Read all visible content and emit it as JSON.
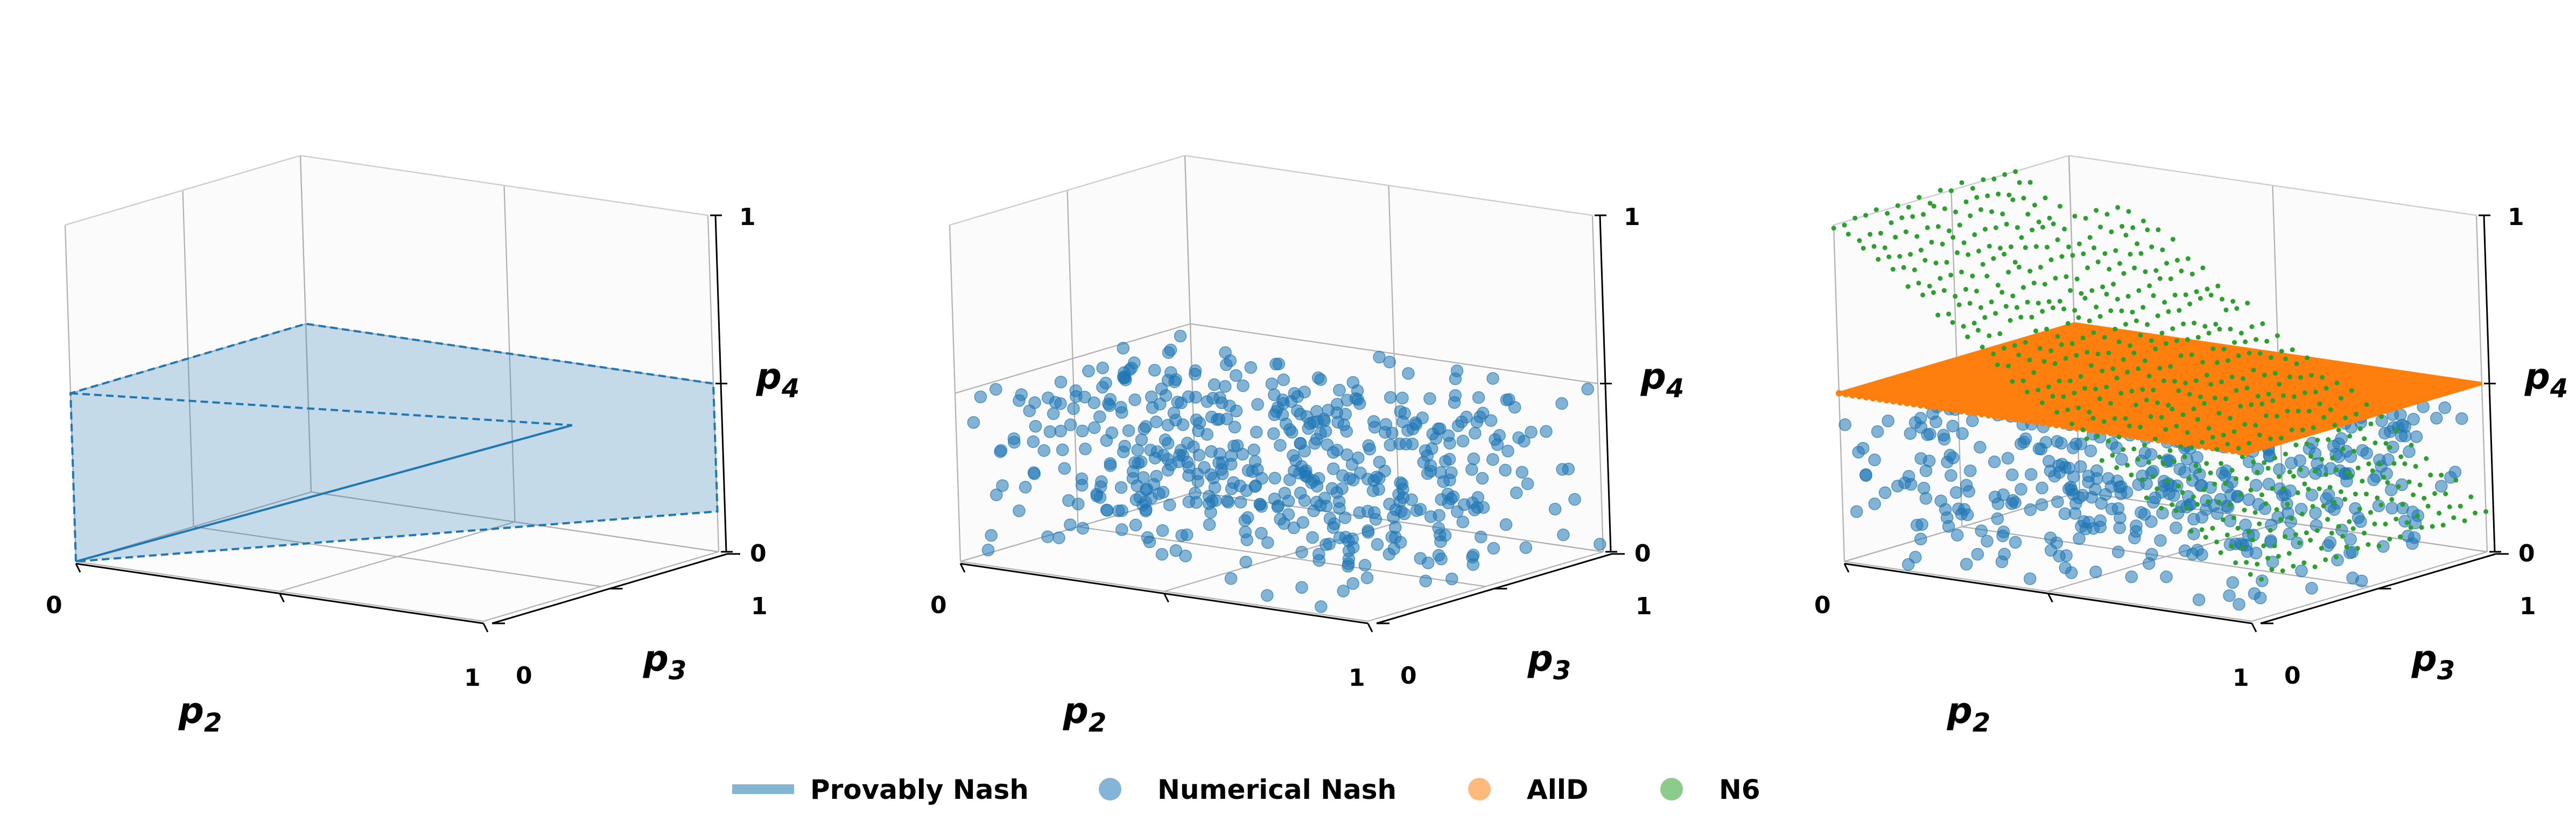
{
  "colors": {
    "provably_nash": "#1f77b4",
    "numerical_nash": "#1f77b4",
    "alld": "#ff7f0e",
    "n6": "#2ca02c",
    "grid": "#b0b0b0",
    "pane": "#e8e8e8"
  },
  "chart_data": [
    {
      "type": "3d-surface",
      "xlabel": "p",
      "xlabel_sub": "2",
      "ylabel": "p",
      "ylabel_sub": "3",
      "zlabel": "p",
      "zlabel_sub": "4",
      "xlim": [
        0,
        1
      ],
      "ylim": [
        0,
        1
      ],
      "zlim": [
        0,
        1
      ],
      "xticks": [
        "0",
        "1"
      ],
      "yticks": [
        "0",
        "1"
      ],
      "zticks": [
        "0",
        "1"
      ],
      "grid": true,
      "series": [
        {
          "name": "Provably Nash",
          "polygon": [
            [
              0,
              0,
              0
            ],
            [
              0,
              0,
              0.5
            ],
            [
              0,
              1,
              0.5
            ],
            [
              1,
              1,
              0.5
            ],
            [
              1,
              1,
              0.12
            ]
          ],
          "inner_line": [
            [
              0,
              0,
              0
            ],
            [
              1,
              0.4,
              0.5
            ]
          ]
        }
      ]
    },
    {
      "type": "3d-scatter",
      "xlabel": "p",
      "xlabel_sub": "2",
      "ylabel": "p",
      "ylabel_sub": "3",
      "zlabel": "p",
      "zlabel_sub": "4",
      "xlim": [
        0,
        1
      ],
      "ylim": [
        0,
        1
      ],
      "zlim": [
        0,
        1
      ],
      "xticks": [
        "0",
        "1"
      ],
      "yticks": [
        "0",
        "1"
      ],
      "zticks": [
        "0",
        "1"
      ],
      "grid": true,
      "series": [
        {
          "name": "Numerical Nash",
          "n_points": 520,
          "p2_range": [
            0,
            1
          ],
          "p3_range": [
            0,
            1
          ],
          "p4_range": [
            0,
            0.5
          ]
        }
      ]
    },
    {
      "type": "3d-scatter",
      "xlabel": "p",
      "xlabel_sub": "2",
      "ylabel": "p",
      "ylabel_sub": "3",
      "zlabel": "p",
      "zlabel_sub": "4",
      "xlim": [
        0,
        1
      ],
      "ylim": [
        0,
        1
      ],
      "zlim": [
        0,
        1
      ],
      "xticks": [
        "0",
        "1"
      ],
      "yticks": [
        "0",
        "1"
      ],
      "zticks": [
        "0",
        "1"
      ],
      "grid": true,
      "series": [
        {
          "name": "Numerical Nash",
          "n_points": 520,
          "p2_range": [
            0,
            1
          ],
          "p3_range": [
            0,
            1
          ],
          "p4_range": [
            0,
            0.5
          ]
        },
        {
          "name": "AllD",
          "plane_p4": 0.5,
          "p2_range": [
            0,
            1
          ],
          "p3_range": [
            0,
            1
          ]
        },
        {
          "name": "N6",
          "curve": "p4 decreases from 1 to 0.12 as p2 goes from 0 to 1",
          "p3_range": [
            0,
            1
          ]
        }
      ]
    }
  ],
  "legend": {
    "placement": "bottom-center",
    "entries": [
      {
        "label": "Provably Nash",
        "marker": "line"
      },
      {
        "label": "Numerical Nash",
        "marker": "dot"
      },
      {
        "label": "AllD",
        "marker": "dot"
      },
      {
        "label": "N6",
        "marker": "dot"
      }
    ]
  }
}
